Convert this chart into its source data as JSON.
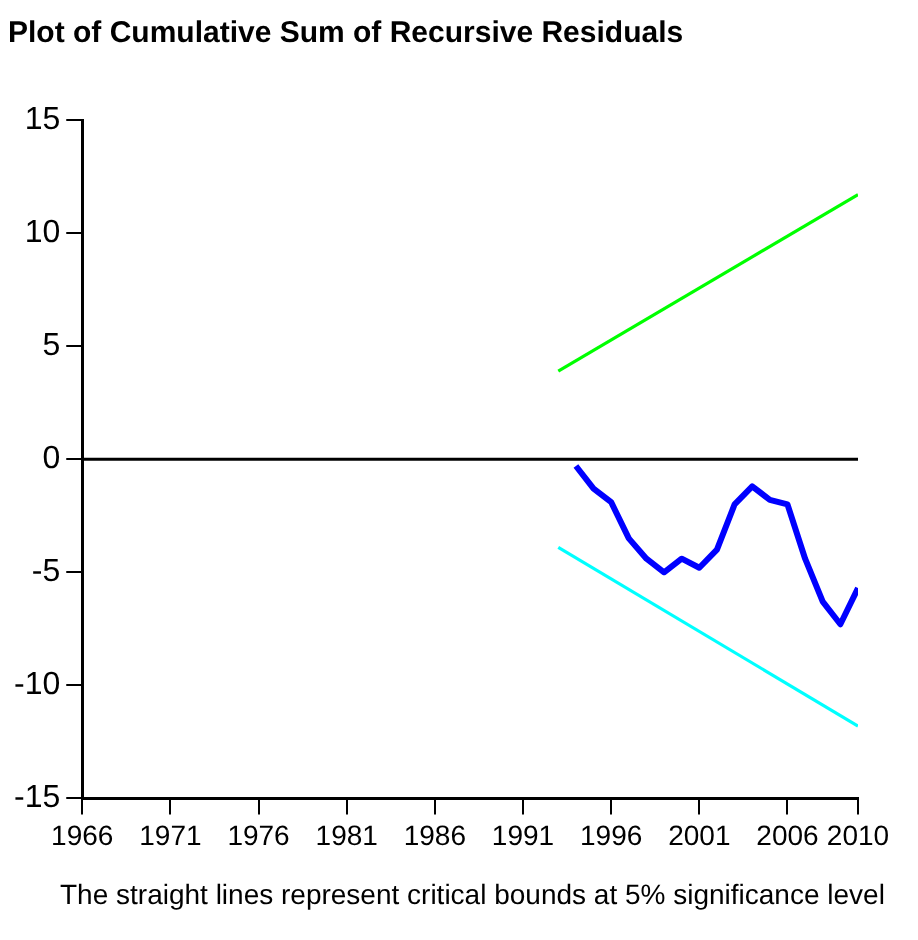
{
  "chart_data": {
    "type": "line",
    "title": "Plot of Cumulative Sum of Recursive Residuals",
    "annotations": [
      "The straight lines represent critical bounds at 5% significance level"
    ],
    "xlim": [
      1966,
      2010
    ],
    "xticks": [
      1966,
      1971,
      1976,
      1981,
      1986,
      1991,
      1996,
      2001,
      2006,
      2010
    ],
    "ylim": [
      -15,
      15
    ],
    "yticks": [
      -15,
      -10,
      -5,
      0,
      5,
      10,
      15
    ],
    "grid": false,
    "legend": false,
    "marker": "none",
    "line_style": "solid",
    "ref_lines": [
      {
        "axis": "y",
        "value": 0,
        "color": "#000000"
      }
    ],
    "series": [
      {
        "color": "#0000ff",
        "x": [
          1994,
          1995,
          1996,
          1997,
          1998,
          1999,
          2000,
          2001,
          2002,
          2003,
          2004,
          2005,
          2006,
          2007,
          2008,
          2009,
          2010
        ],
        "values": [
          -0.3,
          -1.3,
          -1.9,
          -3.5,
          -4.4,
          -5.0,
          -4.4,
          -4.8,
          -4.0,
          -2.0,
          -1.2,
          -1.8,
          -2.0,
          -4.4,
          -6.3,
          -7.3,
          -5.7
        ]
      },
      {
        "color": "#00ff00",
        "x": [
          1993,
          2010
        ],
        "values": [
          3.9,
          11.7
        ]
      },
      {
        "color": "#00ffff",
        "x": [
          1993,
          2010
        ],
        "values": [
          -3.9,
          -11.8
        ]
      }
    ]
  }
}
